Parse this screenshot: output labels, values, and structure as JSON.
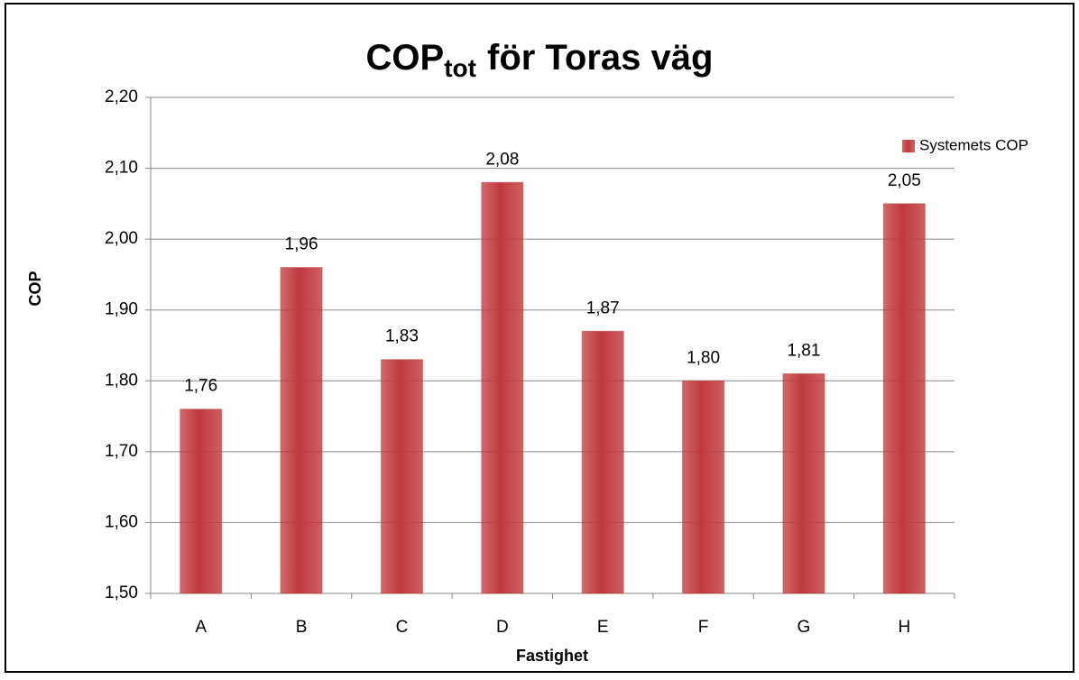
{
  "chart_data": {
    "type": "bar",
    "title": {
      "main": "COP",
      "subscript": "tot",
      "rest": "för Toras väg"
    },
    "x_label": "Fastighet",
    "y_label": "COP",
    "categories": [
      "A",
      "B",
      "C",
      "D",
      "E",
      "F",
      "G",
      "H"
    ],
    "series": [
      {
        "name": "Systemets COP",
        "color": "#c0393b",
        "values": [
          1.76,
          1.96,
          1.83,
          2.08,
          1.87,
          1.8,
          1.81,
          2.05
        ],
        "value_labels": [
          "1,76",
          "1,96",
          "1,83",
          "2,08",
          "1,87",
          "1,80",
          "1,81",
          "2,05"
        ]
      }
    ],
    "ylim": [
      1.5,
      2.2
    ],
    "yticks": [
      {
        "value": 1.5,
        "label": "1,50"
      },
      {
        "value": 1.6,
        "label": "1,60"
      },
      {
        "value": 1.7,
        "label": "1,70"
      },
      {
        "value": 1.8,
        "label": "1,80"
      },
      {
        "value": 1.9,
        "label": "1,90"
      },
      {
        "value": 2.0,
        "label": "2,00"
      },
      {
        "value": 2.1,
        "label": "2,10"
      },
      {
        "value": 2.2,
        "label": "2,20"
      }
    ],
    "grid": true,
    "legend": "right"
  }
}
